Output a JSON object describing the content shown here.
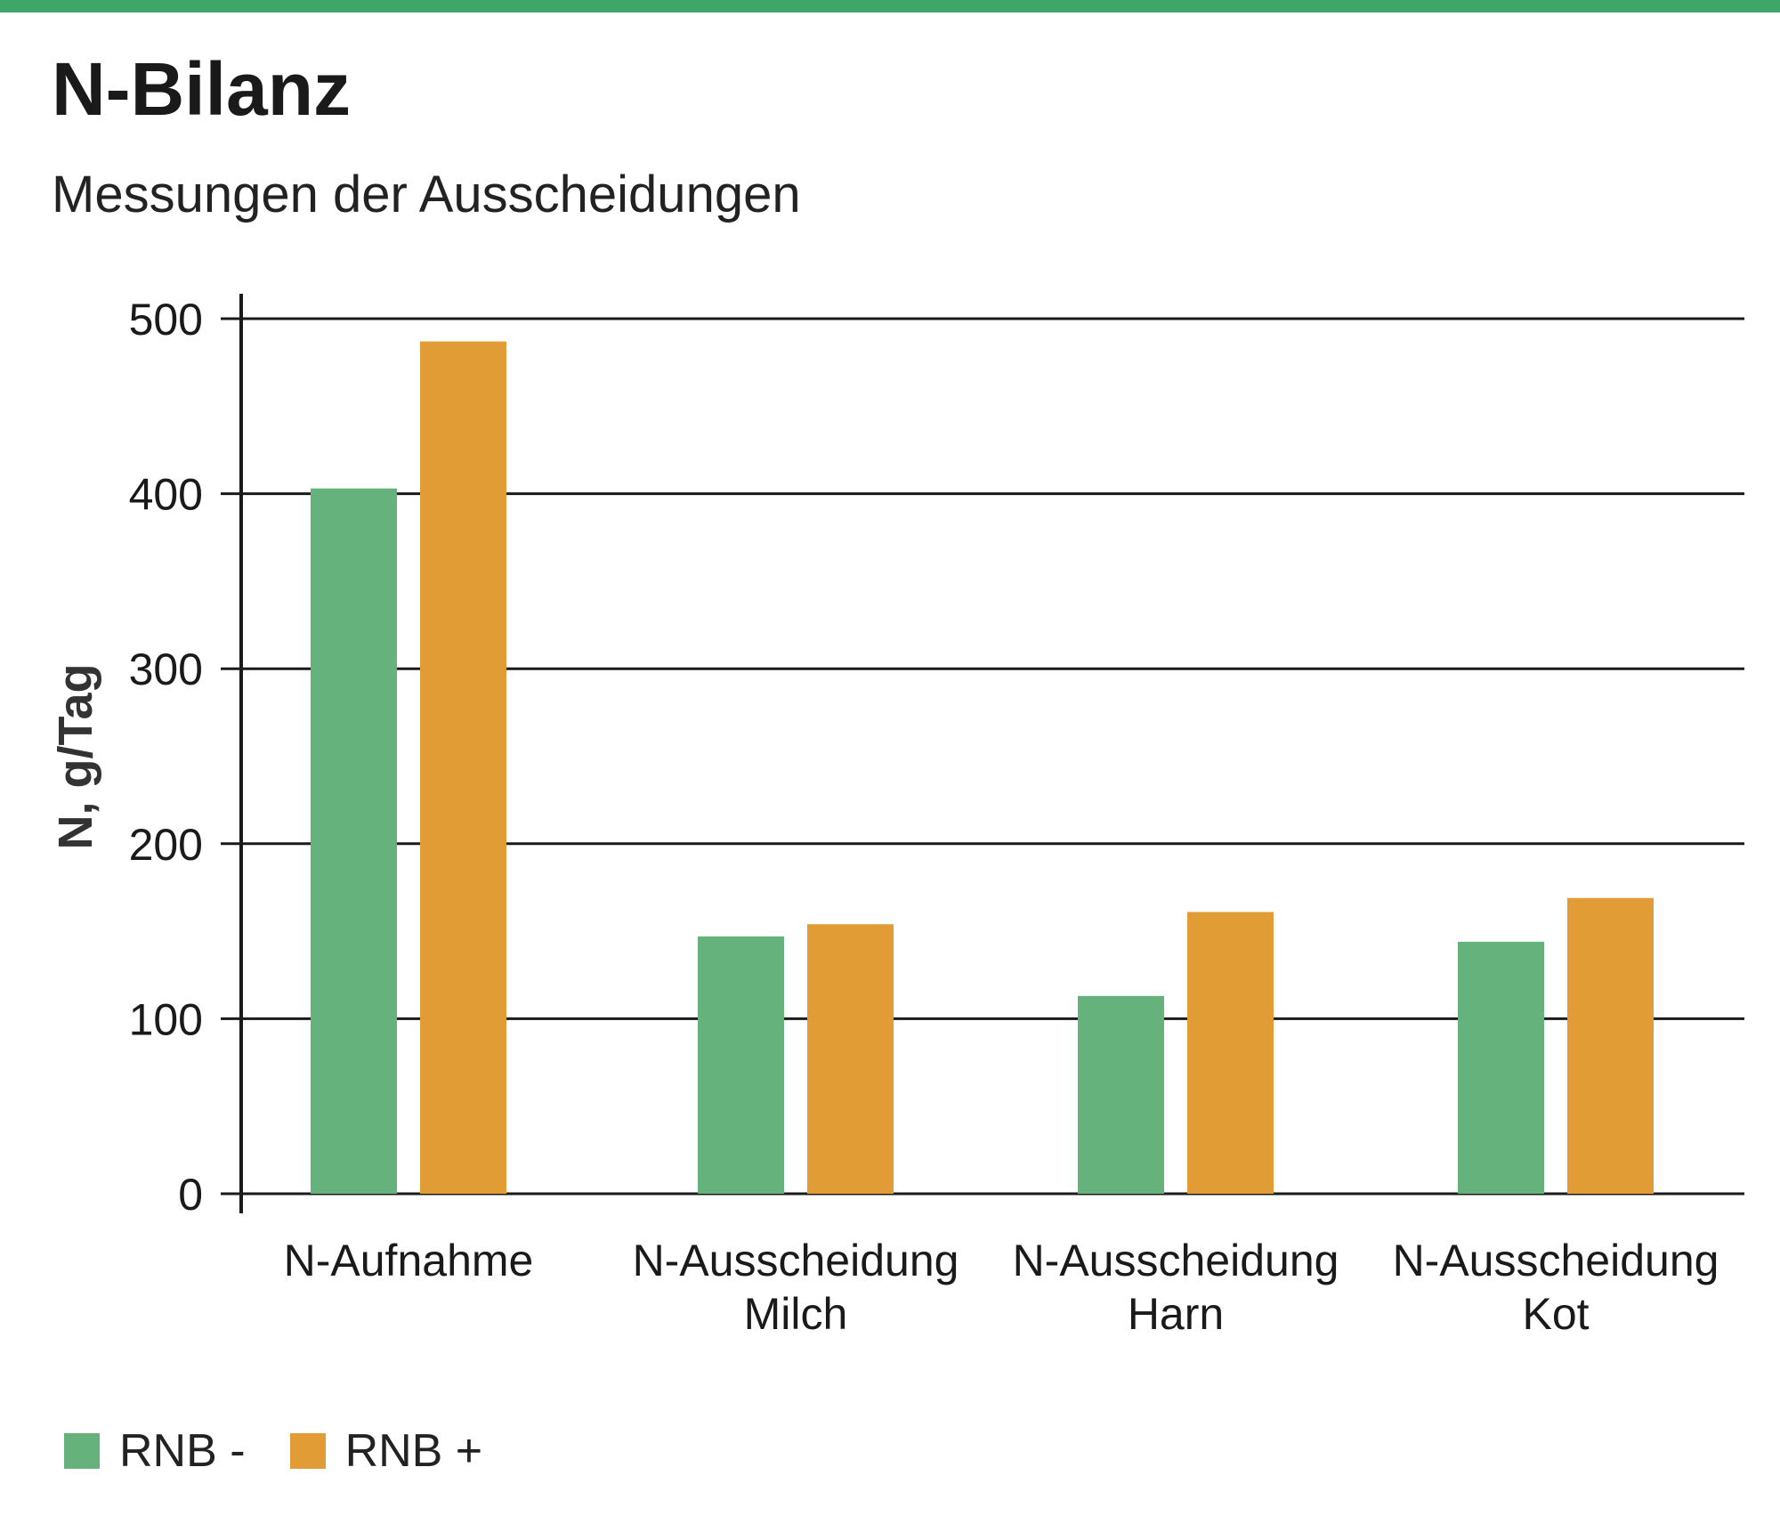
{
  "header": {
    "title": "N-Bilanz",
    "subtitle": "Messungen der Ausscheidungen"
  },
  "colors": {
    "accent_bar": "#3fa66a",
    "series_1": "#65b27c",
    "series_2": "#e29c36"
  },
  "chart_data": {
    "type": "bar",
    "title": "N-Bilanz",
    "subtitle": "Messungen der Ausscheidungen",
    "xlabel": "",
    "ylabel": "N, g/Tag",
    "ylim": [
      0,
      500
    ],
    "yticks": [
      0,
      100,
      200,
      300,
      400,
      500
    ],
    "grid": "horizontal",
    "legend_position": "bottom-left",
    "categories": [
      [
        "N-Aufnahme"
      ],
      [
        "N-Ausscheidung",
        "Milch"
      ],
      [
        "N-Ausscheidung",
        "Harn"
      ],
      [
        "N-Ausscheidung",
        "Kot"
      ]
    ],
    "series": [
      {
        "name": "RNB -",
        "color": "#65b27c",
        "values": [
          403,
          147,
          113,
          144
        ]
      },
      {
        "name": "RNB +",
        "color": "#e29c36",
        "values": [
          487,
          154,
          161,
          169
        ]
      }
    ]
  }
}
